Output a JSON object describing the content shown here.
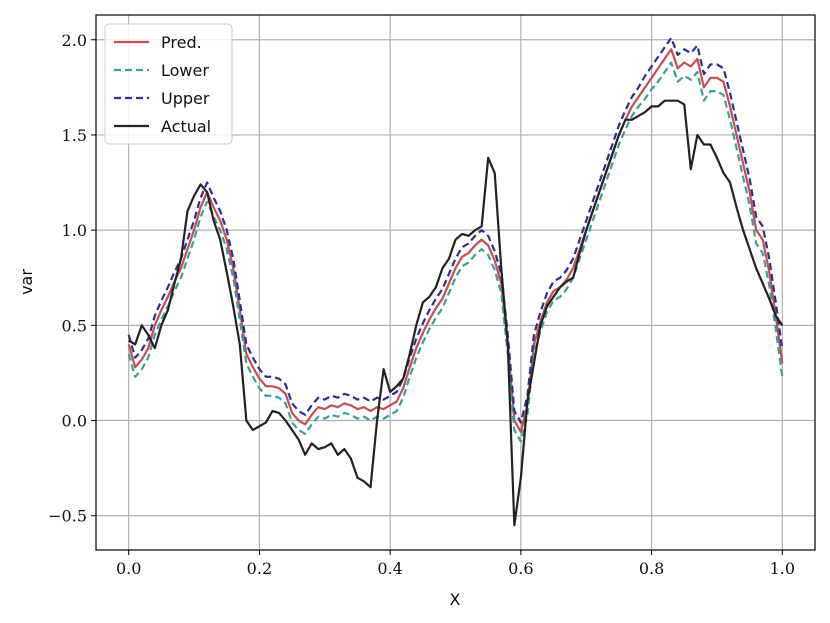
{
  "chart_data": {
    "type": "line",
    "x_label": "X",
    "y_label": "var",
    "x": [
      0,
      0.01,
      0.02,
      0.03,
      0.04,
      0.05,
      0.06,
      0.07,
      0.08,
      0.09,
      0.1,
      0.11,
      0.12,
      0.13,
      0.14,
      0.15,
      0.16,
      0.17,
      0.18,
      0.19,
      0.2,
      0.21,
      0.22,
      0.23,
      0.24,
      0.25,
      0.26,
      0.27,
      0.28,
      0.29,
      0.3,
      0.31,
      0.32,
      0.33,
      0.34,
      0.35,
      0.36,
      0.37,
      0.38,
      0.39,
      0.4,
      0.41,
      0.42,
      0.43,
      0.44,
      0.45,
      0.46,
      0.47,
      0.48,
      0.49,
      0.5,
      0.51,
      0.52,
      0.53,
      0.54,
      0.55,
      0.56,
      0.57,
      0.58,
      0.59,
      0.6,
      0.61,
      0.62,
      0.63,
      0.64,
      0.65,
      0.66,
      0.67,
      0.68,
      0.69,
      0.7,
      0.71,
      0.72,
      0.73,
      0.74,
      0.75,
      0.76,
      0.77,
      0.78,
      0.79,
      0.8,
      0.81,
      0.82,
      0.83,
      0.84,
      0.85,
      0.86,
      0.87,
      0.88,
      0.89,
      0.9,
      0.91,
      0.92,
      0.93,
      0.94,
      0.95,
      0.96,
      0.97,
      0.98,
      0.99,
      1
    ],
    "series": [
      {
        "name": "Pred.",
        "color": "#c44e52",
        "linestyle": "solid",
        "values": [
          0.4,
          0.28,
          0.32,
          0.38,
          0.5,
          0.58,
          0.65,
          0.73,
          0.8,
          0.9,
          1.0,
          1.12,
          1.2,
          1.12,
          1.05,
          0.95,
          0.8,
          0.58,
          0.35,
          0.28,
          0.22,
          0.18,
          0.18,
          0.17,
          0.14,
          0.04,
          0.0,
          -0.02,
          0.03,
          0.07,
          0.06,
          0.08,
          0.07,
          0.09,
          0.08,
          0.06,
          0.07,
          0.05,
          0.07,
          0.06,
          0.08,
          0.1,
          0.17,
          0.28,
          0.38,
          0.46,
          0.53,
          0.59,
          0.64,
          0.72,
          0.8,
          0.86,
          0.88,
          0.92,
          0.95,
          0.92,
          0.84,
          0.72,
          0.4,
          0.0,
          -0.06,
          0.08,
          0.4,
          0.52,
          0.62,
          0.68,
          0.7,
          0.74,
          0.8,
          0.9,
          1.0,
          1.1,
          1.2,
          1.3,
          1.4,
          1.5,
          1.58,
          1.65,
          1.7,
          1.75,
          1.8,
          1.85,
          1.9,
          1.95,
          1.85,
          1.88,
          1.86,
          1.9,
          1.75,
          1.8,
          1.8,
          1.78,
          1.65,
          1.5,
          1.35,
          1.2,
          1.0,
          0.95,
          0.78,
          0.55,
          0.3
        ]
      },
      {
        "name": "Lower",
        "color": "#3a9e9a",
        "linestyle": "dashed",
        "values": [
          0.35,
          0.23,
          0.27,
          0.33,
          0.45,
          0.53,
          0.6,
          0.68,
          0.75,
          0.85,
          0.95,
          1.07,
          1.15,
          1.07,
          1.0,
          0.9,
          0.75,
          0.53,
          0.3,
          0.23,
          0.17,
          0.13,
          0.13,
          0.12,
          0.09,
          -0.01,
          -0.05,
          -0.07,
          -0.02,
          0.02,
          0.01,
          0.03,
          0.02,
          0.04,
          0.03,
          0.01,
          0.02,
          0.0,
          0.02,
          0.01,
          0.03,
          0.05,
          0.12,
          0.23,
          0.33,
          0.41,
          0.48,
          0.54,
          0.59,
          0.67,
          0.75,
          0.81,
          0.83,
          0.87,
          0.9,
          0.87,
          0.79,
          0.67,
          0.35,
          -0.05,
          -0.11,
          0.03,
          0.35,
          0.47,
          0.57,
          0.63,
          0.65,
          0.69,
          0.75,
          0.85,
          0.95,
          1.05,
          1.15,
          1.25,
          1.35,
          1.45,
          1.53,
          1.6,
          1.65,
          1.69,
          1.74,
          1.78,
          1.83,
          1.88,
          1.78,
          1.81,
          1.79,
          1.83,
          1.68,
          1.73,
          1.73,
          1.71,
          1.58,
          1.43,
          1.28,
          1.13,
          0.93,
          0.88,
          0.71,
          0.48,
          0.23
        ]
      },
      {
        "name": "Upper",
        "color": "#2e2e8f",
        "linestyle": "dashed",
        "values": [
          0.45,
          0.33,
          0.37,
          0.43,
          0.55,
          0.63,
          0.7,
          0.78,
          0.85,
          0.95,
          1.05,
          1.17,
          1.25,
          1.17,
          1.1,
          1.0,
          0.85,
          0.63,
          0.4,
          0.33,
          0.27,
          0.23,
          0.23,
          0.22,
          0.19,
          0.09,
          0.05,
          0.03,
          0.08,
          0.12,
          0.11,
          0.13,
          0.12,
          0.14,
          0.13,
          0.11,
          0.12,
          0.1,
          0.12,
          0.11,
          0.13,
          0.15,
          0.22,
          0.33,
          0.43,
          0.51,
          0.58,
          0.64,
          0.69,
          0.77,
          0.85,
          0.91,
          0.93,
          0.97,
          1.0,
          0.97,
          0.89,
          0.77,
          0.45,
          0.05,
          -0.01,
          0.13,
          0.45,
          0.57,
          0.67,
          0.73,
          0.75,
          0.79,
          0.85,
          0.95,
          1.05,
          1.15,
          1.25,
          1.35,
          1.45,
          1.55,
          1.63,
          1.7,
          1.75,
          1.81,
          1.86,
          1.91,
          1.96,
          2.01,
          1.92,
          1.95,
          1.93,
          1.97,
          1.82,
          1.87,
          1.87,
          1.85,
          1.72,
          1.57,
          1.42,
          1.27,
          1.07,
          1.02,
          0.85,
          0.62,
          0.37
        ]
      },
      {
        "name": "Actual",
        "color": "#222222",
        "linestyle": "solid",
        "values": [
          0.42,
          0.4,
          0.5,
          0.45,
          0.38,
          0.5,
          0.58,
          0.72,
          0.85,
          1.1,
          1.18,
          1.24,
          1.2,
          1.05,
          0.95,
          0.78,
          0.6,
          0.4,
          0.0,
          -0.05,
          -0.03,
          -0.01,
          0.05,
          0.04,
          0.0,
          -0.05,
          -0.1,
          -0.18,
          -0.12,
          -0.15,
          -0.14,
          -0.12,
          -0.18,
          -0.15,
          -0.2,
          -0.3,
          -0.32,
          -0.35,
          0.0,
          0.27,
          0.15,
          0.18,
          0.22,
          0.35,
          0.5,
          0.62,
          0.65,
          0.7,
          0.8,
          0.85,
          0.95,
          0.98,
          0.97,
          1.0,
          1.02,
          1.38,
          1.3,
          0.8,
          0.4,
          -0.55,
          -0.3,
          0.1,
          0.3,
          0.5,
          0.6,
          0.65,
          0.7,
          0.73,
          0.75,
          0.88,
          1.0,
          1.1,
          1.2,
          1.3,
          1.4,
          1.5,
          1.58,
          1.58,
          1.6,
          1.62,
          1.65,
          1.65,
          1.68,
          1.68,
          1.68,
          1.66,
          1.32,
          1.5,
          1.45,
          1.45,
          1.38,
          1.3,
          1.25,
          1.12,
          1.0,
          0.9,
          0.8,
          0.72,
          0.64,
          0.55,
          0.5
        ]
      }
    ],
    "xlim": [
      -0.05,
      1.05
    ],
    "ylim": [
      -0.68,
      2.13
    ],
    "xticks": [
      {
        "value": 0,
        "label": "0.0"
      },
      {
        "value": 0.2,
        "label": "0.2"
      },
      {
        "value": 0.4,
        "label": "0.4"
      },
      {
        "value": 0.6,
        "label": "0.6"
      },
      {
        "value": 0.8,
        "label": "0.8"
      },
      {
        "value": 1,
        "label": "1.0"
      }
    ],
    "yticks": [
      {
        "value": -0.5,
        "label": "−0.5"
      },
      {
        "value": 0,
        "label": "0.0"
      },
      {
        "value": 0.5,
        "label": "0.5"
      },
      {
        "value": 1,
        "label": "1.0"
      },
      {
        "value": 1.5,
        "label": "1.5"
      },
      {
        "value": 2,
        "label": "2.0"
      }
    ],
    "grid": true,
    "legend": "upper left"
  }
}
